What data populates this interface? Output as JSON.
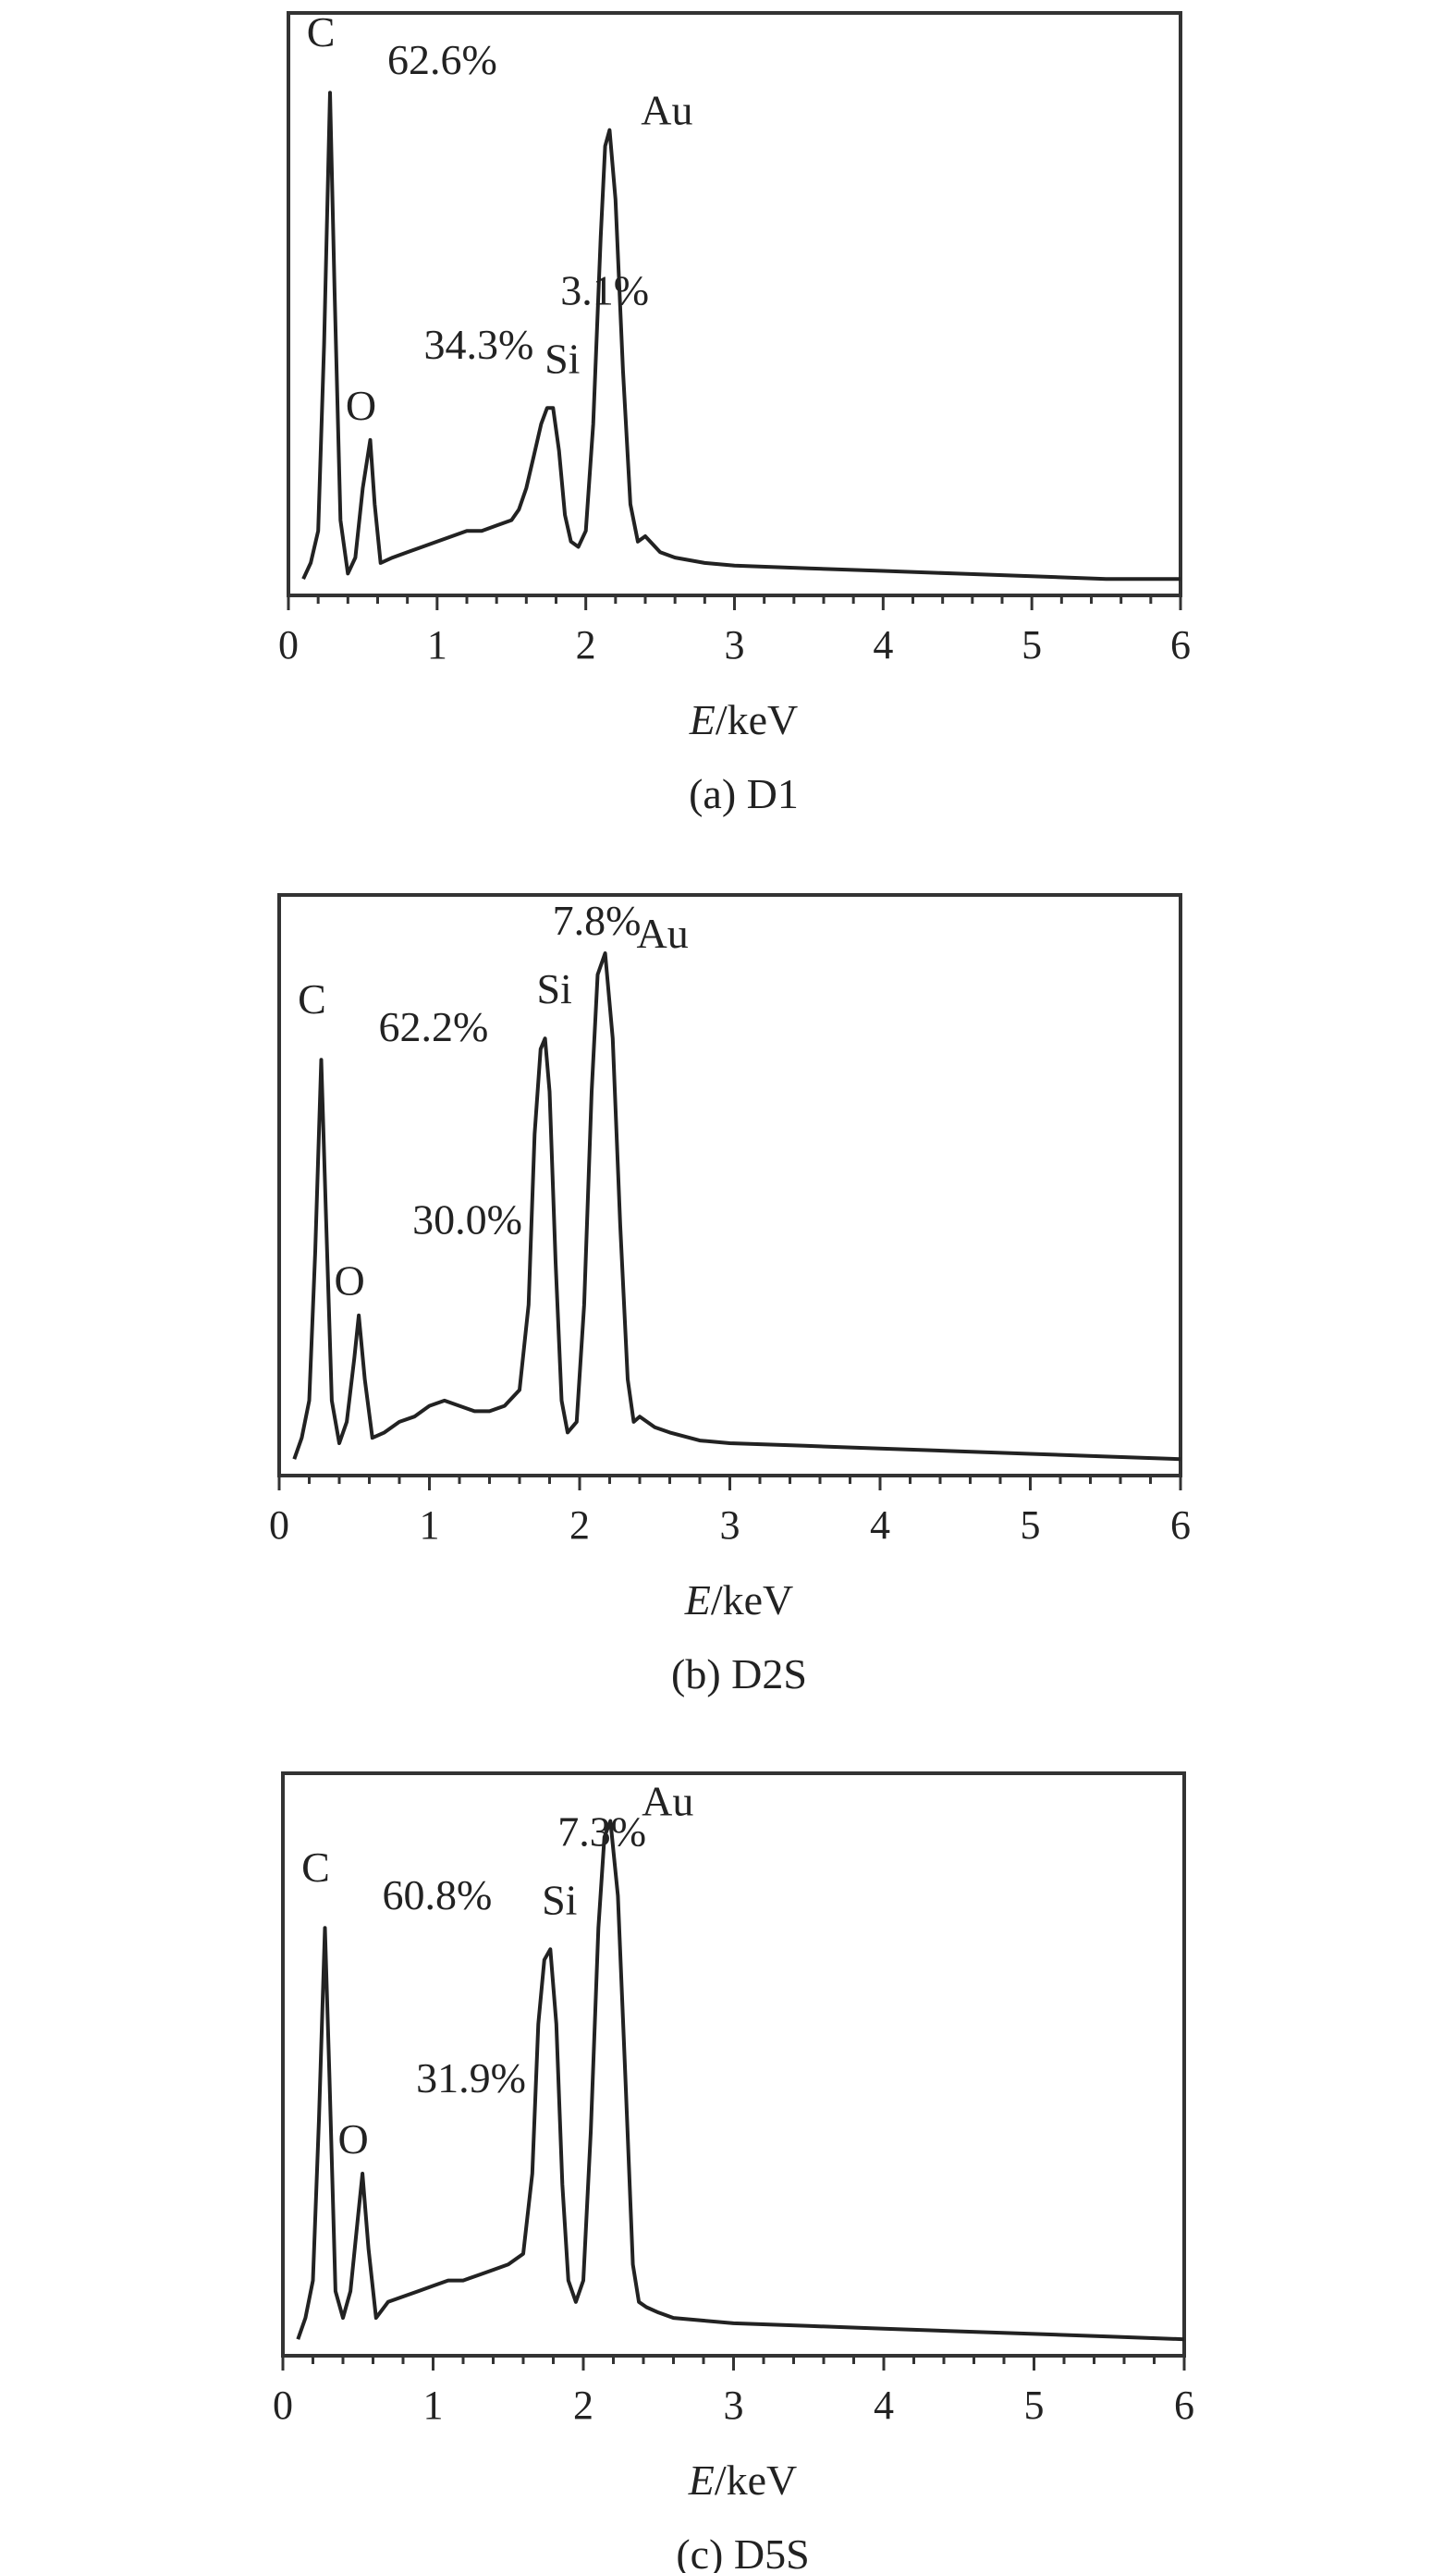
{
  "chart_data": [
    {
      "type": "line",
      "caption": "(a) D1",
      "xlabel_var": "E",
      "xlabel_unit": "/keV",
      "xlim": [
        0,
        6
      ],
      "x_ticks": [
        "0",
        "1",
        "2",
        "3",
        "4",
        "5",
        "6"
      ],
      "grid": false,
      "peaks": [
        {
          "element": "C",
          "percent": "62.6%",
          "energy": 0.28,
          "height": 0.92
        },
        {
          "element": "O",
          "percent": "34.3%",
          "energy": 0.55,
          "height": 0.27
        },
        {
          "element": "Si",
          "percent": "3.1%",
          "energy": 1.78,
          "height": 0.33
        },
        {
          "element": "Au",
          "percent": "",
          "energy": 2.16,
          "height": 0.85
        }
      ],
      "series": [
        {
          "x": [
            0.1,
            0.15,
            0.2,
            0.24,
            0.28,
            0.31,
            0.35,
            0.4,
            0.45,
            0.5,
            0.55,
            0.58,
            0.62,
            0.7,
            0.8,
            0.9,
            1.0,
            1.1,
            1.2,
            1.3,
            1.4,
            1.5,
            1.55,
            1.6,
            1.65,
            1.7,
            1.74,
            1.78,
            1.82,
            1.86,
            1.9,
            1.95,
            2.0,
            2.05,
            2.1,
            2.13,
            2.16,
            2.2,
            2.25,
            2.3,
            2.35,
            2.4,
            2.5,
            2.6,
            2.8,
            3.0,
            3.5,
            4.0,
            4.5,
            5.0,
            5.5,
            6.0
          ],
          "y": [
            0.01,
            0.04,
            0.1,
            0.45,
            0.92,
            0.55,
            0.12,
            0.02,
            0.05,
            0.18,
            0.27,
            0.15,
            0.04,
            0.05,
            0.06,
            0.07,
            0.08,
            0.09,
            0.1,
            0.1,
            0.11,
            0.12,
            0.14,
            0.18,
            0.24,
            0.3,
            0.33,
            0.33,
            0.25,
            0.13,
            0.08,
            0.07,
            0.1,
            0.3,
            0.65,
            0.82,
            0.85,
            0.72,
            0.4,
            0.15,
            0.08,
            0.09,
            0.06,
            0.05,
            0.04,
            0.035,
            0.03,
            0.025,
            0.02,
            0.015,
            0.01,
            0.01
          ]
        }
      ]
    },
    {
      "type": "line",
      "caption": "(b) D2S",
      "xlabel_var": "E",
      "xlabel_unit": "/keV",
      "xlim": [
        0,
        6
      ],
      "x_ticks": [
        "0",
        "1",
        "2",
        "3",
        "4",
        "5",
        "6"
      ],
      "grid": false,
      "peaks": [
        {
          "element": "C",
          "percent": "62.2%",
          "energy": 0.28,
          "height": 0.76
        },
        {
          "element": "O",
          "percent": "30.0%",
          "energy": 0.53,
          "height": 0.28
        },
        {
          "element": "Si",
          "percent": "7.8%",
          "energy": 1.77,
          "height": 0.8
        },
        {
          "element": "Au",
          "percent": "",
          "energy": 2.17,
          "height": 0.96
        }
      ],
      "series": [
        {
          "x": [
            0.1,
            0.15,
            0.2,
            0.24,
            0.28,
            0.31,
            0.35,
            0.4,
            0.45,
            0.5,
            0.53,
            0.57,
            0.62,
            0.7,
            0.8,
            0.9,
            1.0,
            1.1,
            1.2,
            1.3,
            1.4,
            1.5,
            1.6,
            1.66,
            1.7,
            1.74,
            1.77,
            1.8,
            1.84,
            1.88,
            1.92,
            1.98,
            2.03,
            2.08,
            2.12,
            2.17,
            2.22,
            2.27,
            2.32,
            2.36,
            2.4,
            2.5,
            2.6,
            2.8,
            3.0,
            3.5,
            4.0,
            4.5,
            5.0,
            5.5,
            6.0
          ],
          "y": [
            0.01,
            0.05,
            0.12,
            0.4,
            0.76,
            0.48,
            0.12,
            0.04,
            0.08,
            0.2,
            0.28,
            0.16,
            0.05,
            0.06,
            0.08,
            0.09,
            0.11,
            0.12,
            0.11,
            0.1,
            0.1,
            0.11,
            0.14,
            0.3,
            0.62,
            0.78,
            0.8,
            0.7,
            0.38,
            0.12,
            0.06,
            0.08,
            0.3,
            0.7,
            0.92,
            0.96,
            0.8,
            0.45,
            0.16,
            0.08,
            0.09,
            0.07,
            0.06,
            0.045,
            0.04,
            0.035,
            0.03,
            0.025,
            0.02,
            0.015,
            0.01
          ]
        }
      ]
    },
    {
      "type": "line",
      "caption": "(c) D5S",
      "xlabel_var": "E",
      "xlabel_unit": "/keV",
      "xlim": [
        0,
        6
      ],
      "x_ticks": [
        "0",
        "1",
        "2",
        "3",
        "4",
        "5",
        "6"
      ],
      "grid": false,
      "peaks": [
        {
          "element": "C",
          "percent": "60.8%",
          "energy": 0.28,
          "height": 0.78
        },
        {
          "element": "O",
          "percent": "31.9%",
          "energy": 0.53,
          "height": 0.32
        },
        {
          "element": "Si",
          "percent": "7.3%",
          "energy": 1.78,
          "height": 0.74
        },
        {
          "element": "Au",
          "percent": "",
          "energy": 2.18,
          "height": 0.98
        }
      ],
      "series": [
        {
          "x": [
            0.1,
            0.15,
            0.2,
            0.24,
            0.28,
            0.31,
            0.35,
            0.4,
            0.45,
            0.5,
            0.53,
            0.57,
            0.62,
            0.7,
            0.8,
            0.9,
            1.0,
            1.1,
            1.2,
            1.3,
            1.4,
            1.5,
            1.6,
            1.66,
            1.7,
            1.74,
            1.78,
            1.82,
            1.86,
            1.9,
            1.95,
            2.0,
            2.05,
            2.1,
            2.14,
            2.18,
            2.23,
            2.28,
            2.33,
            2.37,
            2.42,
            2.5,
            2.6,
            2.8,
            3.0,
            3.5,
            4.0,
            4.5,
            5.0,
            5.5,
            6.0
          ],
          "y": [
            0.01,
            0.05,
            0.12,
            0.42,
            0.78,
            0.5,
            0.1,
            0.05,
            0.1,
            0.24,
            0.32,
            0.18,
            0.05,
            0.08,
            0.09,
            0.1,
            0.11,
            0.12,
            0.12,
            0.13,
            0.14,
            0.15,
            0.17,
            0.32,
            0.6,
            0.72,
            0.74,
            0.6,
            0.3,
            0.12,
            0.08,
            0.12,
            0.4,
            0.78,
            0.95,
            0.98,
            0.84,
            0.5,
            0.15,
            0.08,
            0.07,
            0.06,
            0.05,
            0.045,
            0.04,
            0.035,
            0.03,
            0.025,
            0.02,
            0.015,
            0.01
          ]
        }
      ]
    }
  ]
}
